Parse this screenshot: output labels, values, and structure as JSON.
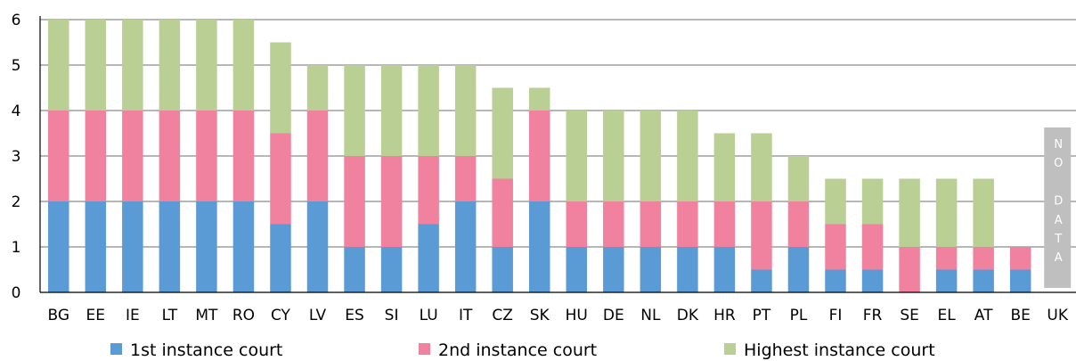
{
  "chart_data": {
    "type": "bar",
    "stacked": true,
    "title": "",
    "xlabel": "",
    "ylabel": "",
    "ylim": [
      0,
      6
    ],
    "yticks": [
      "0",
      "1",
      "2",
      "3",
      "4",
      "5",
      "6"
    ],
    "grid": true,
    "legend_position": "bottom",
    "categories": [
      "BG",
      "EE",
      "IE",
      "LT",
      "MT",
      "RO",
      "CY",
      "LV",
      "ES",
      "SI",
      "LU",
      "IT",
      "CZ",
      "SK",
      "HU",
      "DE",
      "NL",
      "DK",
      "HR",
      "PT",
      "PL",
      "FI",
      "FR",
      "SE",
      "EL",
      "AT",
      "BE",
      "UK"
    ],
    "series": [
      {
        "name": "1st instance court",
        "color": "#5b9bd5",
        "values": [
          2,
          2,
          2,
          2,
          2,
          2,
          1.5,
          2,
          1,
          1,
          1.5,
          2,
          1,
          2,
          1,
          1,
          1,
          1,
          1,
          0.5,
          1,
          0.5,
          0.5,
          0,
          0.5,
          0.5,
          0.5,
          null
        ]
      },
      {
        "name": "2nd instance court",
        "color": "#f0829f",
        "values": [
          2,
          2,
          2,
          2,
          2,
          2,
          2,
          2,
          2,
          2,
          1.5,
          1,
          1.5,
          2,
          1,
          1,
          1,
          1,
          1,
          1.5,
          1,
          1,
          1,
          1,
          0.5,
          0.5,
          0.5,
          null
        ]
      },
      {
        "name": "Highest instance court",
        "color": "#b9cf94",
        "values": [
          2,
          2,
          2,
          2,
          2,
          2,
          2,
          1,
          2,
          2,
          2,
          2,
          2,
          0.5,
          2,
          2,
          2,
          2,
          1.5,
          1.5,
          1,
          1,
          1,
          1.5,
          1.5,
          1.5,
          0,
          null
        ]
      }
    ],
    "annotations": [
      {
        "category": "UK",
        "text": "NO DATA",
        "letters": [
          "N",
          "O",
          "",
          "D",
          "A",
          "T",
          "A"
        ],
        "color": "#bfbfbf"
      }
    ]
  }
}
